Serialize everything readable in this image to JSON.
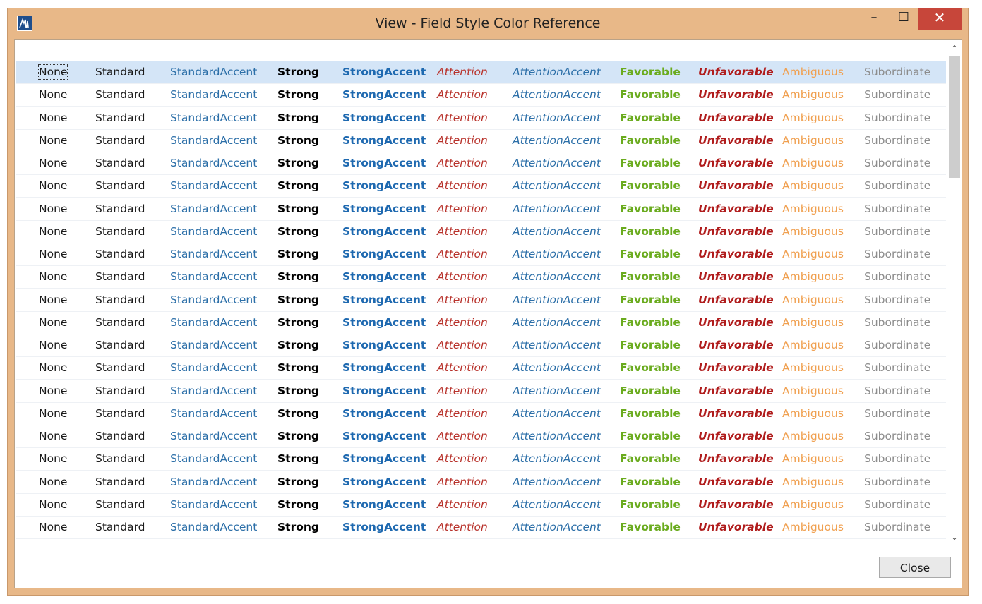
{
  "window": {
    "title": "View - Field Style Color Reference",
    "controls": {
      "minimize": "–",
      "maximize": "☐",
      "close": "✕"
    },
    "app_icon": "app-logo-icon"
  },
  "styles": [
    {
      "key": "none",
      "label": "None",
      "color": "#1a1a1a"
    },
    {
      "key": "standard",
      "label": "Standard",
      "color": "#1a1a1a"
    },
    {
      "key": "standardaccent",
      "label": "StandardAccent",
      "color": "#2c6fa8"
    },
    {
      "key": "strong",
      "label": "Strong",
      "color": "#000000"
    },
    {
      "key": "strongaccent",
      "label": "StrongAccent",
      "color": "#1e69b0"
    },
    {
      "key": "attention",
      "label": "Attention",
      "color": "#b8322b"
    },
    {
      "key": "attentionaccent",
      "label": "AttentionAccent",
      "color": "#2c6fa8"
    },
    {
      "key": "favorable",
      "label": "Favorable",
      "color": "#6aab1e"
    },
    {
      "key": "unfavorable",
      "label": "Unfavorable",
      "color": "#b01c1c"
    },
    {
      "key": "ambiguous",
      "label": "Ambiguous",
      "color": "#f0a050"
    },
    {
      "key": "subordinate",
      "label": "Subordinate",
      "color": "#8c8c8c"
    }
  ],
  "grid": {
    "row_count": 21,
    "selected_row": 0
  },
  "scrollbar": {
    "up_icon": "chevron-up-icon",
    "down_icon": "chevron-down-icon",
    "up_glyph": "⌃",
    "down_glyph": "⌄"
  },
  "footer": {
    "close_label": "Close"
  }
}
